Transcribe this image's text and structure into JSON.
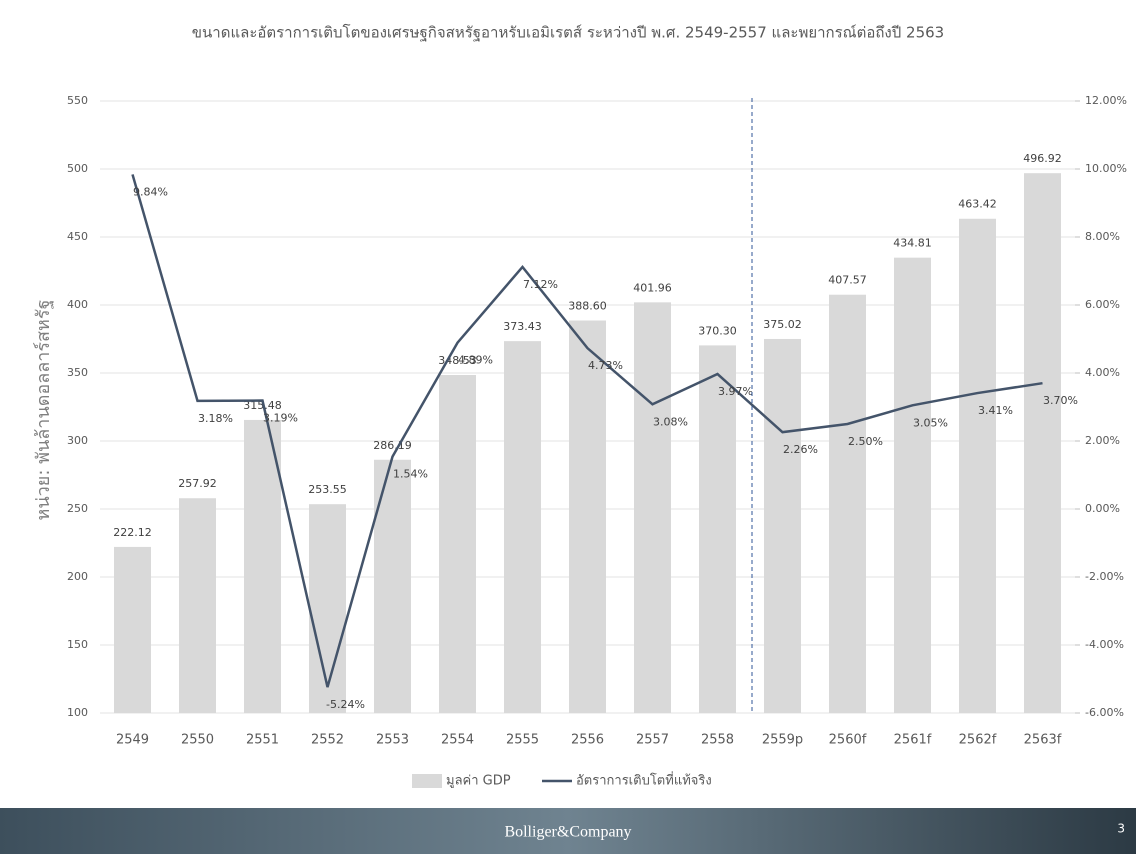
{
  "chart_data": {
    "type": "bar-line",
    "title": "ขนาดและอัตราการเติบโตของเศรษฐกิจสหรัฐอาหรับเอมิเรตส์ ระหว่างปี พ.ศ. 2549-2557 และพยากรณ์ต่อถึงปี 2563",
    "y_label": "หน่วย: พันล้านดอลลาร์สหรัฐ",
    "categories": [
      "2549",
      "2550",
      "2551",
      "2552",
      "2553",
      "2554",
      "2555",
      "2556",
      "2557",
      "2558",
      "2559p",
      "2560f",
      "2561f",
      "2562f",
      "2563f"
    ],
    "series": [
      {
        "name": "มูลค่า GDP",
        "type": "bar",
        "color": "#d9d9d9",
        "values": [
          222.12,
          257.92,
          315.48,
          253.55,
          286.19,
          348.53,
          373.43,
          388.6,
          401.96,
          370.3,
          375.02,
          407.57,
          434.81,
          463.42,
          496.92
        ],
        "value_labels": [
          "222.12",
          "257.92",
          "315.48",
          "253.55",
          "286.19",
          "348.53",
          "373.43",
          "388.60",
          "401.96",
          "370.30",
          "375.02",
          "407.57",
          "434.81",
          "463.42",
          "496.92"
        ]
      },
      {
        "name": "อัตราการเติบโตที่แท้จริง",
        "type": "line",
        "axis": "y2",
        "color": "#44546a",
        "values": [
          9.84,
          3.18,
          3.19,
          -5.24,
          1.54,
          4.89,
          7.12,
          4.73,
          3.08,
          3.97,
          2.26,
          2.5,
          3.05,
          3.41,
          3.7
        ],
        "value_labels": [
          "9.84%",
          "3.18%",
          "3.19%",
          "-5.24%",
          "1.54%",
          "4.89%",
          "7.12%",
          "4.73%",
          "3.08%",
          "3.97%",
          "2.26%",
          "2.50%",
          "3.05%",
          "3.41%",
          "3.70%"
        ]
      }
    ],
    "ylim": [
      100,
      550
    ],
    "yticks": [
      100,
      150,
      200,
      250,
      300,
      350,
      400,
      450,
      500,
      550
    ],
    "y2lim": [
      -6,
      12
    ],
    "y2ticks": [
      {
        "value": -6,
        "label": "-6.00%"
      },
      {
        "value": -4,
        "label": "-4.00%"
      },
      {
        "value": -2,
        "label": "-2.00%"
      },
      {
        "value": 0,
        "label": "0.00%"
      },
      {
        "value": 2,
        "label": "2.00%"
      },
      {
        "value": 4,
        "label": "4.00%"
      },
      {
        "value": 6,
        "label": "6.00%"
      },
      {
        "value": 8,
        "label": "8.00%"
      },
      {
        "value": 10,
        "label": "10.00%"
      },
      {
        "value": 12,
        "label": "12.00%"
      }
    ],
    "grid": true,
    "legend": "bottom"
  },
  "footer": {
    "brand": "Bolliger&Company",
    "page": "3"
  }
}
